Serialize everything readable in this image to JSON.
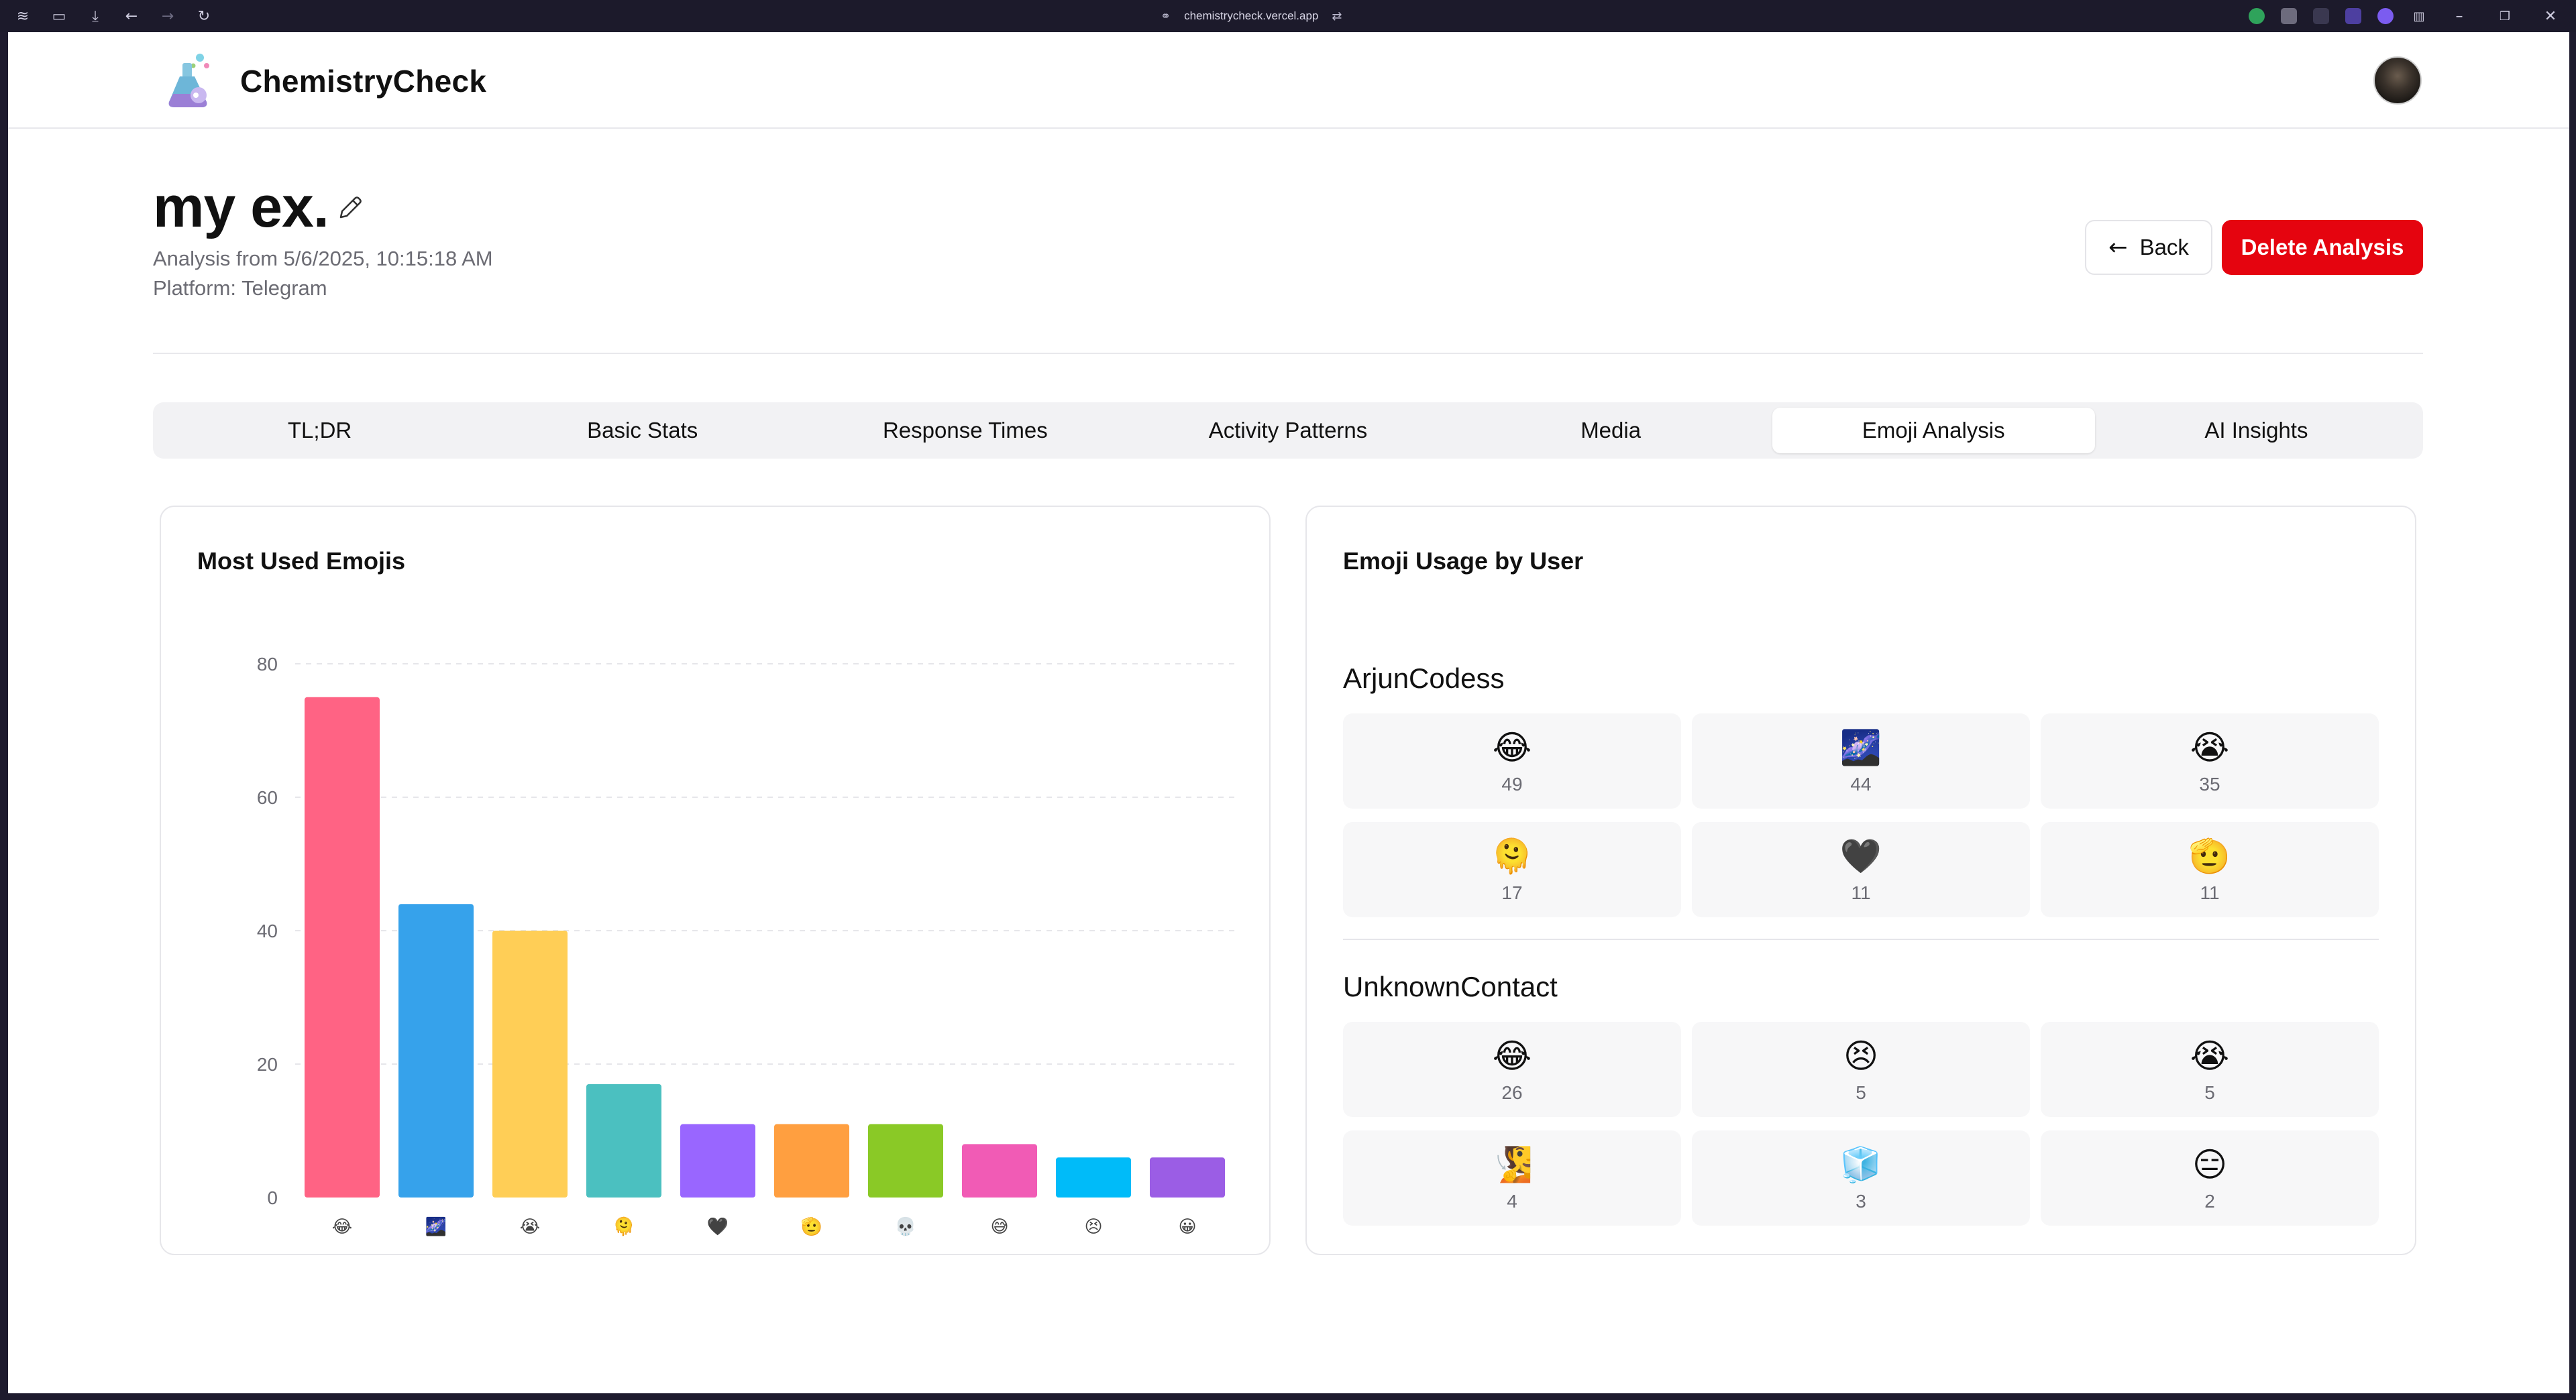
{
  "browser": {
    "url": "chemistrycheck.vercel.app"
  },
  "header": {
    "brand": "ChemistryCheck"
  },
  "analysis": {
    "title": "my ex.",
    "date_line": "Analysis from 5/6/2025, 10:15:18 AM",
    "platform_line": "Platform: Telegram"
  },
  "actions": {
    "back_label": "Back",
    "delete_label": "Delete Analysis"
  },
  "tabs": [
    {
      "label": "TL;DR",
      "active": false
    },
    {
      "label": "Basic Stats",
      "active": false
    },
    {
      "label": "Response Times",
      "active": false
    },
    {
      "label": "Activity Patterns",
      "active": false
    },
    {
      "label": "Media",
      "active": false
    },
    {
      "label": "Emoji Analysis",
      "active": true
    },
    {
      "label": "AI Insights",
      "active": false
    }
  ],
  "most_used": {
    "title": "Most Used Emojis"
  },
  "chart_data": {
    "type": "bar",
    "title": "Most Used Emojis",
    "categories": [
      "😂",
      "🌌",
      "😭",
      "🫠",
      "🖤",
      "🫡",
      "💀",
      "😅",
      "😣",
      "😀"
    ],
    "values": [
      75,
      44,
      40,
      17,
      11,
      11,
      11,
      8,
      6,
      6
    ],
    "colors": [
      "#ff6384",
      "#36a2eb",
      "#ffce56",
      "#4bc0c0",
      "#9966ff",
      "#ff9f40",
      "#8ac926",
      "#f15bb5",
      "#00bbf9",
      "#9b5de5"
    ],
    "ylim": [
      0,
      80
    ],
    "yticks": [
      0,
      20,
      40,
      60,
      80
    ],
    "grid": true,
    "xlabel": "",
    "ylabel": ""
  },
  "by_user": {
    "title": "Emoji Usage by User",
    "users": [
      {
        "name": "ArjunCodess",
        "emojis": [
          {
            "emoji": "😂",
            "count": "49"
          },
          {
            "emoji": "🌌",
            "count": "44"
          },
          {
            "emoji": "😭",
            "count": "35"
          },
          {
            "emoji": "🫠",
            "count": "17"
          },
          {
            "emoji": "🖤",
            "count": "11"
          },
          {
            "emoji": "🫡",
            "count": "11"
          }
        ]
      },
      {
        "name": "UnknownContact",
        "emojis": [
          {
            "emoji": "😂",
            "count": "26"
          },
          {
            "emoji": "😣",
            "count": "5"
          },
          {
            "emoji": "😭",
            "count": "5"
          },
          {
            "emoji": "🧏",
            "count": "4"
          },
          {
            "emoji": "🧊",
            "count": "3"
          },
          {
            "emoji": "😑",
            "count": "2"
          }
        ]
      }
    ]
  }
}
